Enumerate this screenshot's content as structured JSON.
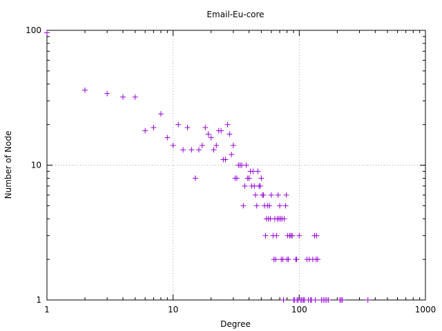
{
  "chart_data": {
    "type": "scatter",
    "title": "Email-Eu-core",
    "xlabel": "Degree",
    "ylabel": "Number of Node",
    "xscale": "log",
    "yscale": "log",
    "xlim": [
      1,
      1000
    ],
    "ylim": [
      1,
      100
    ],
    "xticks": [
      1,
      10,
      100,
      1000
    ],
    "xtick_labels": [
      "1",
      "10",
      "100",
      "1000"
    ],
    "yticks": [
      1,
      10,
      100
    ],
    "ytick_labels": [
      "1",
      "10",
      "100"
    ],
    "grid": true,
    "marker": "+",
    "color": "#9400d3",
    "points": [
      [
        1,
        96
      ],
      [
        2,
        36
      ],
      [
        3,
        34
      ],
      [
        4,
        32
      ],
      [
        5,
        32
      ],
      [
        6,
        18
      ],
      [
        7,
        19
      ],
      [
        8,
        24
      ],
      [
        9,
        16
      ],
      [
        10,
        14
      ],
      [
        11,
        20
      ],
      [
        12,
        13
      ],
      [
        13,
        19
      ],
      [
        14,
        13
      ],
      [
        15,
        8
      ],
      [
        16,
        13
      ],
      [
        17,
        14
      ],
      [
        18,
        19
      ],
      [
        19,
        17
      ],
      [
        20,
        16
      ],
      [
        21,
        13
      ],
      [
        22,
        14
      ],
      [
        23,
        18
      ],
      [
        24,
        18
      ],
      [
        25,
        11
      ],
      [
        26,
        11
      ],
      [
        27,
        20
      ],
      [
        28,
        17
      ],
      [
        29,
        12
      ],
      [
        30,
        14
      ],
      [
        31,
        8
      ],
      [
        32,
        8
      ],
      [
        33,
        10
      ],
      [
        34,
        10
      ],
      [
        35,
        10
      ],
      [
        36,
        5
      ],
      [
        37,
        7
      ],
      [
        38,
        10
      ],
      [
        39,
        8
      ],
      [
        40,
        8
      ],
      [
        41,
        9
      ],
      [
        42,
        7
      ],
      [
        43,
        9
      ],
      [
        44,
        7
      ],
      [
        45,
        6
      ],
      [
        46,
        5
      ],
      [
        47,
        9
      ],
      [
        48,
        7
      ],
      [
        49,
        7
      ],
      [
        50,
        8
      ],
      [
        51,
        6
      ],
      [
        52,
        6
      ],
      [
        53,
        5
      ],
      [
        54,
        3
      ],
      [
        55,
        4
      ],
      [
        56,
        5
      ],
      [
        57,
        4
      ],
      [
        58,
        5
      ],
      [
        59,
        4
      ],
      [
        60,
        6
      ],
      [
        62,
        3
      ],
      [
        63,
        2
      ],
      [
        64,
        4
      ],
      [
        65,
        2
      ],
      [
        66,
        3
      ],
      [
        67,
        4
      ],
      [
        68,
        6
      ],
      [
        69,
        4
      ],
      [
        70,
        5
      ],
      [
        71,
        4
      ],
      [
        72,
        2
      ],
      [
        73,
        4
      ],
      [
        74,
        2
      ],
      [
        75,
        1
      ],
      [
        76,
        4
      ],
      [
        78,
        5
      ],
      [
        79,
        6
      ],
      [
        80,
        2
      ],
      [
        81,
        3
      ],
      [
        82,
        2
      ],
      [
        84,
        3
      ],
      [
        86,
        3
      ],
      [
        88,
        3
      ],
      [
        90,
        1
      ],
      [
        92,
        1
      ],
      [
        94,
        2
      ],
      [
        95,
        2
      ],
      [
        96,
        1
      ],
      [
        98,
        1
      ],
      [
        100,
        3
      ],
      [
        103,
        1
      ],
      [
        105,
        1
      ],
      [
        108,
        1
      ],
      [
        110,
        1
      ],
      [
        115,
        2
      ],
      [
        118,
        1
      ],
      [
        120,
        2
      ],
      [
        123,
        1
      ],
      [
        125,
        1
      ],
      [
        128,
        2
      ],
      [
        132,
        3
      ],
      [
        134,
        1
      ],
      [
        136,
        2
      ],
      [
        137,
        3
      ],
      [
        140,
        2
      ],
      [
        150,
        1
      ],
      [
        155,
        1
      ],
      [
        160,
        1
      ],
      [
        165,
        1
      ],
      [
        170,
        1
      ],
      [
        210,
        1
      ],
      [
        215,
        1
      ],
      [
        220,
        1
      ],
      [
        350,
        1
      ]
    ]
  }
}
